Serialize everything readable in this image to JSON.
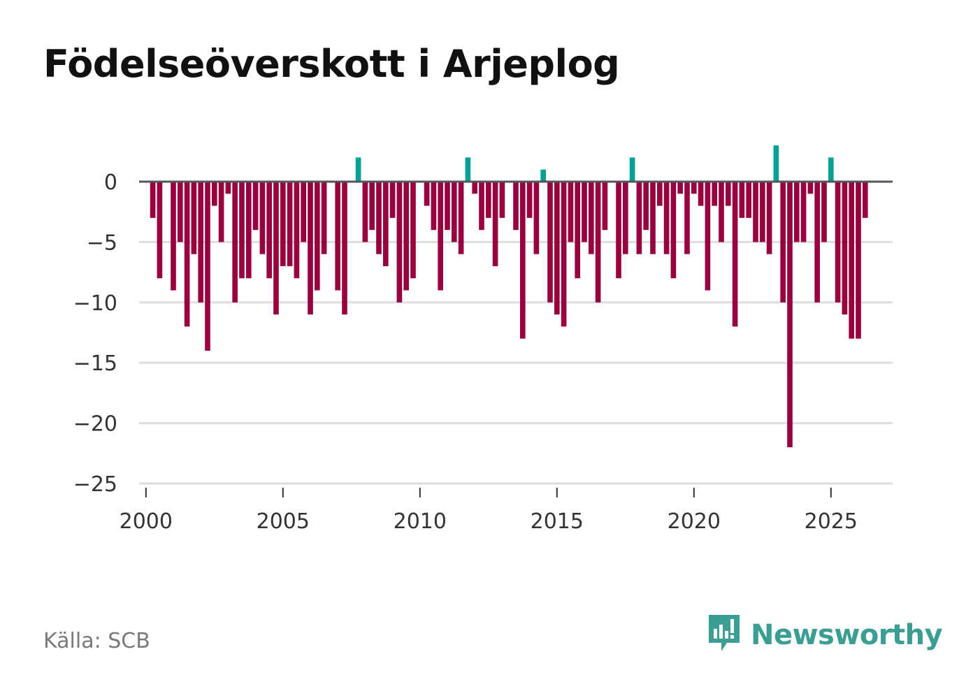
{
  "title": "Födelseöverskott i Arjeplog",
  "source": "Källa: SCB",
  "brand": {
    "name": "Newsworthy",
    "icon": "newsworthy-logo-icon"
  },
  "colors": {
    "negative": "#990040",
    "positive": "#00a096",
    "grid": "#dddddd",
    "zero_line": "#555555",
    "brand": "#3a9e93"
  },
  "chart_data": {
    "type": "bar",
    "title": "Födelseöverskott i Arjeplog",
    "xlabel": "",
    "ylabel": "",
    "ylim": [
      -25,
      3
    ],
    "xlim": [
      1999.75,
      2027.25
    ],
    "y_ticks": [
      0,
      -5,
      -10,
      -15,
      -20,
      -25
    ],
    "y_tick_labels": [
      "0",
      "−5",
      "−10",
      "−15",
      "−20",
      "−25"
    ],
    "x_ticks": [
      2000,
      2005,
      2010,
      2015,
      2020,
      2025
    ],
    "x_tick_labels": [
      "2000",
      "2005",
      "2010",
      "2015",
      "2020",
      "2025"
    ],
    "grid": true,
    "frequency": "quarterly",
    "start_period": 2000.25,
    "period_step": 0.25,
    "values": [
      -3,
      -8,
      0,
      -9,
      -5,
      -12,
      -6,
      -10,
      -14,
      -2,
      -5,
      -1,
      -10,
      -8,
      -8,
      -4,
      -6,
      -8,
      -11,
      -7,
      -7,
      -8,
      -5,
      -11,
      -9,
      -6,
      0,
      -9,
      -11,
      0,
      2,
      -5,
      -4,
      -6,
      -7,
      -3,
      -10,
      -9,
      -8,
      0,
      -2,
      -4,
      -9,
      -4,
      -5,
      -6,
      2,
      -1,
      -4,
      -3,
      -7,
      -3,
      0,
      -4,
      -13,
      -3,
      -6,
      1,
      -10,
      -11,
      -12,
      -5,
      -8,
      -5,
      -6,
      -10,
      -4,
      0,
      -8,
      -6,
      2,
      -6,
      -4,
      -6,
      -2,
      -6,
      -8,
      -1,
      -6,
      -1,
      -2,
      -9,
      -2,
      -5,
      -2,
      -12,
      -3,
      -3,
      -5,
      -5,
      -6,
      3,
      -10,
      -22,
      -5,
      -5,
      -1,
      -10,
      -5,
      2,
      -10,
      -11,
      -13,
      -13,
      -3
    ]
  }
}
